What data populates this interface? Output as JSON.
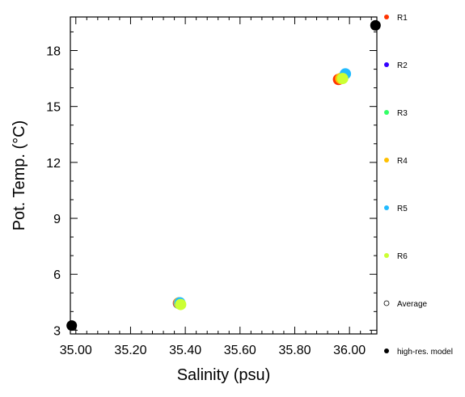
{
  "chart_data": {
    "type": "scatter",
    "xlabel": "Salinity (psu)",
    "ylabel": "Pot. Temp. (°C)",
    "xlim": [
      34.98,
      36.1
    ],
    "ylim": [
      2.8,
      19.8
    ],
    "x_ticks": [
      35.0,
      35.2,
      35.4,
      35.6,
      35.8,
      36.0
    ],
    "x_tick_labels": [
      "35.00",
      "35.20",
      "35.40",
      "35.60",
      "35.80",
      "36.00"
    ],
    "x_minor_step": 0.04,
    "y_ticks": [
      3,
      6,
      9,
      12,
      15,
      18
    ],
    "y_tick_labels": [
      "3",
      "6",
      "9",
      "12",
      "15",
      "18"
    ],
    "y_minor_step": 1,
    "grid": false,
    "legend_position": "right",
    "series": [
      {
        "name": "R1",
        "color": "#ff3300",
        "points": [
          {
            "x": 35.375,
            "y": 4.45
          },
          {
            "x": 35.96,
            "y": 16.45
          }
        ]
      },
      {
        "name": "R2",
        "color": "#3300ff",
        "points": [
          {
            "x": 35.376,
            "y": 4.45
          },
          {
            "x": 35.97,
            "y": 16.5
          }
        ]
      },
      {
        "name": "R3",
        "color": "#33ff66",
        "points": [
          {
            "x": 35.378,
            "y": 4.43
          },
          {
            "x": 35.975,
            "y": 16.55
          }
        ]
      },
      {
        "name": "R4",
        "color": "#ffc000",
        "points": [
          {
            "x": 35.377,
            "y": 4.47
          },
          {
            "x": 35.968,
            "y": 16.5
          }
        ]
      },
      {
        "name": "R5",
        "color": "#22bbff",
        "points": [
          {
            "x": 35.38,
            "y": 4.47
          },
          {
            "x": 35.985,
            "y": 16.75
          }
        ]
      },
      {
        "name": "R6",
        "color": "#ccff33",
        "points": [
          {
            "x": 35.383,
            "y": 4.38
          },
          {
            "x": 35.975,
            "y": 16.5
          }
        ]
      },
      {
        "name": "Average",
        "color": "#ffffff",
        "points": []
      },
      {
        "name": "high-res. model",
        "color": "#000000",
        "points": [
          {
            "x": 34.985,
            "y": 3.25
          },
          {
            "x": 36.095,
            "y": 19.35
          }
        ]
      }
    ]
  }
}
